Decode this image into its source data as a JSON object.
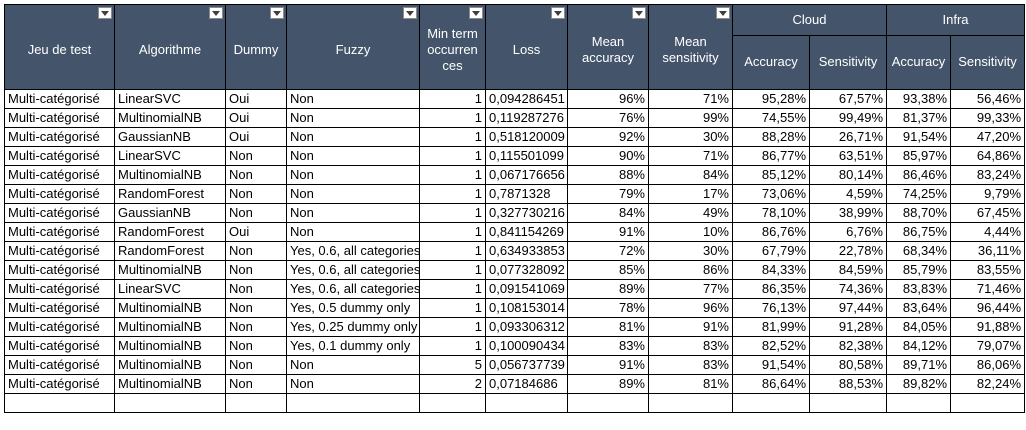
{
  "headers": {
    "jeu_de_test": "Jeu de test",
    "algorithme": "Algorithme",
    "dummy": "Dummy",
    "fuzzy": "Fuzzy",
    "min_term": "Min term occurren ces",
    "loss": "Loss",
    "mean_accuracy": "Mean accuracy",
    "mean_sensitivity": "Mean sensitivity",
    "cloud": "Cloud",
    "infra": "Infra",
    "cloud_accuracy": "Accuracy",
    "cloud_sensitivity": "Sensitivity",
    "infra_accuracy": "Accuracy",
    "infra_sensitivity": "Sensitivity"
  },
  "rows": [
    [
      "Multi-catégorisé",
      "LinearSVC",
      "Oui",
      "Non",
      "1",
      "0,094286451",
      "96%",
      "71%",
      "95,28%",
      "67,57%",
      "93,38%",
      "56,46%"
    ],
    [
      "Multi-catégorisé",
      "MultinomialNB",
      "Oui",
      "Non",
      "1",
      "0,119287276",
      "76%",
      "99%",
      "74,55%",
      "99,49%",
      "81,37%",
      "99,33%"
    ],
    [
      "Multi-catégorisé",
      "GaussianNB",
      "Oui",
      "Non",
      "1",
      "0,518120009",
      "92%",
      "30%",
      "88,28%",
      "26,71%",
      "91,54%",
      "47,20%"
    ],
    [
      "Multi-catégorisé",
      "LinearSVC",
      "Non",
      "Non",
      "1",
      "0,115501099",
      "90%",
      "71%",
      "86,77%",
      "63,51%",
      "85,97%",
      "64,86%"
    ],
    [
      "Multi-catégorisé",
      "MultinomialNB",
      "Non",
      "Non",
      "1",
      "0,067176656",
      "88%",
      "84%",
      "85,12%",
      "80,14%",
      "86,46%",
      "83,24%"
    ],
    [
      "Multi-catégorisé",
      "RandomForest",
      "Non",
      "Non",
      "1",
      "0,7871328",
      "79%",
      "17%",
      "73,06%",
      "4,59%",
      "74,25%",
      "9,79%"
    ],
    [
      "Multi-catégorisé",
      "GaussianNB",
      "Non",
      "Non",
      "1",
      "0,327730216",
      "84%",
      "49%",
      "78,10%",
      "38,99%",
      "88,70%",
      "67,45%"
    ],
    [
      "Multi-catégorisé",
      "RandomForest",
      "Oui",
      "Non",
      "1",
      "0,841154269",
      "91%",
      "10%",
      "86,76%",
      "6,76%",
      "86,75%",
      "4,44%"
    ],
    [
      "Multi-catégorisé",
      "RandomForest",
      "Non",
      "Yes, 0.6, all categories",
      "1",
      "0,634933853",
      "72%",
      "30%",
      "67,79%",
      "22,78%",
      "68,34%",
      "36,11%"
    ],
    [
      "Multi-catégorisé",
      "MultinomialNB",
      "Non",
      "Yes, 0.6, all categories",
      "1",
      "0,077328092",
      "85%",
      "86%",
      "84,33%",
      "84,59%",
      "85,79%",
      "83,55%"
    ],
    [
      "Multi-catégorisé",
      "LinearSVC",
      "Non",
      "Yes, 0.6, all categories",
      "1",
      "0,091541069",
      "89%",
      "77%",
      "86,35%",
      "74,36%",
      "83,83%",
      "71,46%"
    ],
    [
      "Multi-catégorisé",
      "MultinomialNB",
      "Non",
      "Yes, 0.5 dummy only",
      "1",
      "0,108153014",
      "78%",
      "96%",
      "76,13%",
      "97,44%",
      "83,64%",
      "96,44%"
    ],
    [
      "Multi-catégorisé",
      "MultinomialNB",
      "Non",
      "Yes, 0.25 dummy only",
      "1",
      "0,093306312",
      "81%",
      "91%",
      "81,99%",
      "91,28%",
      "84,05%",
      "91,88%"
    ],
    [
      "Multi-catégorisé",
      "MultinomialNB",
      "Non",
      "Yes, 0.1 dummy only",
      "1",
      "0,100090434",
      "83%",
      "83%",
      "82,52%",
      "82,38%",
      "84,12%",
      "79,07%"
    ],
    [
      "Multi-catégorisé",
      "MultinomialNB",
      "Non",
      "Non",
      "5",
      "0,056737739",
      "91%",
      "83%",
      "91,54%",
      "80,58%",
      "89,71%",
      "86,06%"
    ],
    [
      "Multi-catégorisé",
      "MultinomialNB",
      "Non",
      "Non",
      "2",
      "0,07184686",
      "89%",
      "81%",
      "86,64%",
      "88,53%",
      "89,82%",
      "82,24%"
    ]
  ],
  "column_align": [
    "txt",
    "txt",
    "txt",
    "txt",
    "num",
    "txt",
    "num",
    "num",
    "num",
    "num",
    "num",
    "num"
  ]
}
